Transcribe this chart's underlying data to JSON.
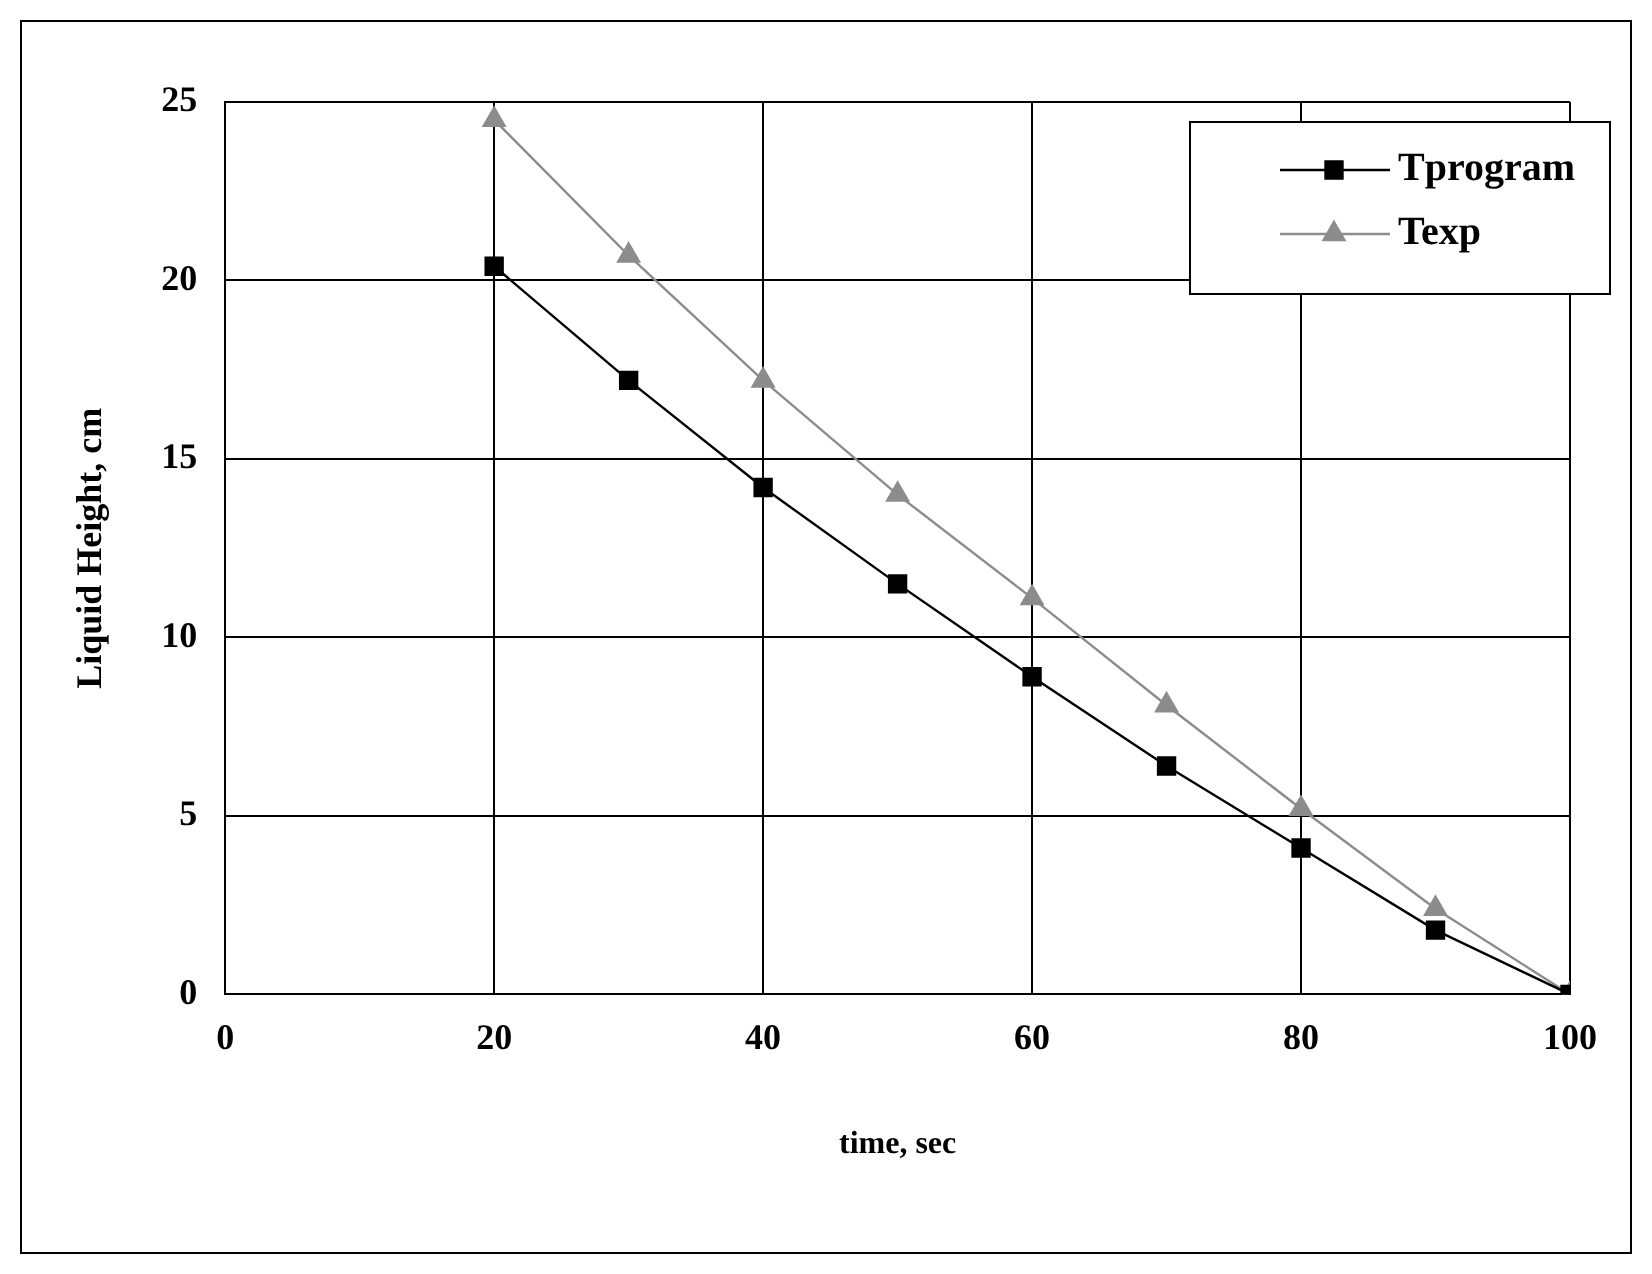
{
  "chart_data": {
    "type": "line",
    "xlabel": "time, sec",
    "ylabel": "Liquid Height, cm",
    "x": [
      20,
      30,
      40,
      50,
      60,
      70,
      80,
      90,
      100
    ],
    "series": [
      {
        "name": "Tprogram",
        "color": "#000000",
        "marker": "square",
        "values": [
          20.4,
          17.2,
          14.2,
          11.5,
          8.9,
          6.4,
          4.1,
          1.8,
          0
        ]
      },
      {
        "name": "Texp",
        "color": "#8c8c8c",
        "marker": "triangle",
        "values": [
          24.5,
          20.7,
          17.2,
          14.0,
          11.1,
          8.1,
          5.2,
          2.4,
          0
        ]
      }
    ],
    "xlim": [
      0,
      100
    ],
    "xticks": [
      0,
      20,
      40,
      60,
      80,
      100
    ],
    "ylim": [
      0,
      25
    ],
    "yticks": [
      0,
      5,
      10,
      15,
      20,
      25
    ],
    "grid": true,
    "legend": "top right",
    "line_style": "solid"
  }
}
